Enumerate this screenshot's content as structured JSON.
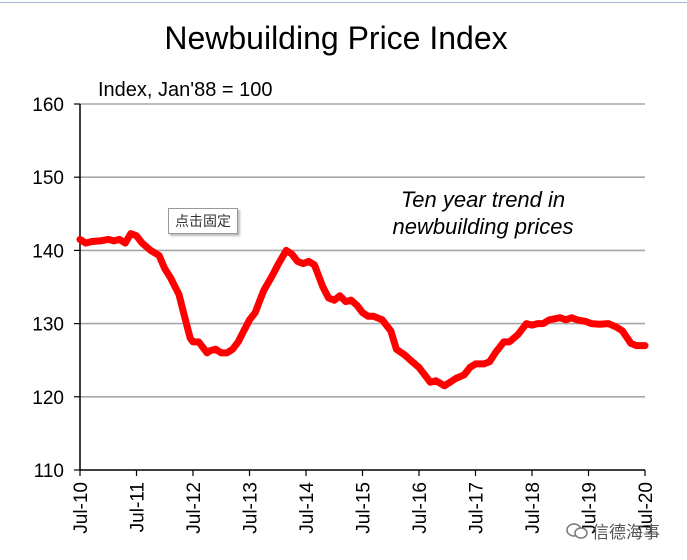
{
  "chart_data": {
    "type": "line",
    "title": "Newbuilding Price Index",
    "ylabel": "Index, Jan'88 = 100",
    "xlabel": "",
    "ylim": [
      110,
      160
    ],
    "yticks": [
      110,
      120,
      130,
      140,
      150,
      160
    ],
    "xticks": [
      "Jul-10",
      "Jul-11",
      "Jul-12",
      "Jul-13",
      "Jul-14",
      "Jul-15",
      "Jul-16",
      "Jul-17",
      "Jul-18",
      "Jul-19",
      "Jul-20"
    ],
    "grid": true,
    "annotation": [
      "Ten year trend in",
      "newbuilding prices"
    ],
    "line_color": "#ff0000",
    "series": [
      {
        "name": "",
        "x": [
          0,
          0.1,
          0.2,
          0.35,
          0.5,
          0.6,
          0.7,
          0.8,
          0.9,
          1.0,
          1.1,
          1.25,
          1.4,
          1.5,
          1.6,
          1.75,
          1.85,
          1.95,
          2.0,
          2.1,
          2.2,
          2.25,
          2.3,
          2.4,
          2.5,
          2.6,
          2.7,
          2.8,
          2.9,
          3.0,
          3.1,
          3.25,
          3.4,
          3.5,
          3.65,
          3.75,
          3.85,
          3.95,
          4.05,
          4.15,
          4.3,
          4.4,
          4.5,
          4.6,
          4.7,
          4.8,
          4.9,
          5.0,
          5.1,
          5.2,
          5.35,
          5.5,
          5.6,
          5.75,
          5.85,
          6.0,
          6.1,
          6.2,
          6.3,
          6.45,
          6.55,
          6.65,
          6.8,
          6.9,
          7.0,
          7.15,
          7.25,
          7.35,
          7.5,
          7.6,
          7.75,
          7.9,
          8.0,
          8.1,
          8.2,
          8.3,
          8.5,
          8.6,
          8.7,
          8.8,
          8.95,
          9.05,
          9.2,
          9.35,
          9.5,
          9.6,
          9.75,
          9.85,
          10.0
        ],
        "values": [
          141.5,
          141,
          141.2,
          141.3,
          141.5,
          141.3,
          141.5,
          141,
          142.3,
          142,
          141,
          140,
          139.3,
          137.5,
          136.3,
          134,
          131,
          128,
          127.5,
          127.5,
          126.5,
          126,
          126.3,
          126.5,
          126,
          126,
          126.5,
          127.5,
          129,
          130.5,
          131.5,
          134.5,
          136.5,
          138,
          140,
          139.5,
          138.5,
          138.2,
          138.5,
          138,
          135,
          133.5,
          133.2,
          133.8,
          133,
          133.2,
          132.5,
          131.5,
          131,
          131,
          130.5,
          129,
          126.5,
          125.7,
          125,
          124,
          123,
          122,
          122.2,
          121.5,
          122,
          122.5,
          123,
          124,
          124.5,
          124.5,
          124.8,
          126,
          127.5,
          127.5,
          128.5,
          130,
          129.8,
          130,
          130,
          130.5,
          130.8,
          130.5,
          130.8,
          130.5,
          130.3,
          130,
          129.9,
          130,
          129.5,
          129,
          127.3,
          127,
          127
        ]
      }
    ]
  },
  "button": {
    "label": "点击固定"
  },
  "watermark": {
    "text": "信德海事"
  }
}
